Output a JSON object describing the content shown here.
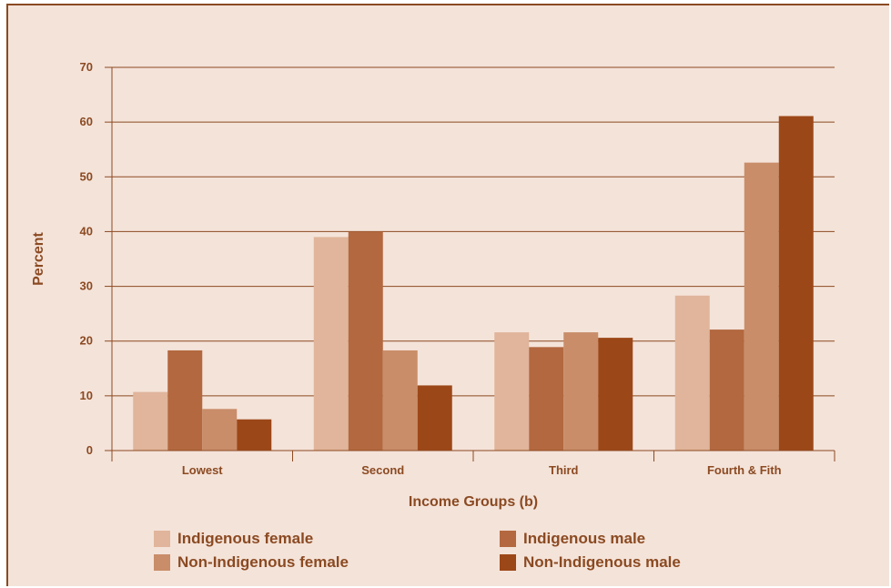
{
  "chart_data": {
    "type": "bar",
    "title": "",
    "xlabel": "Income Groups (b)",
    "ylabel": "Percent",
    "ylim": [
      0,
      70
    ],
    "yticks": [
      "0",
      "10",
      "20",
      "30",
      "40",
      "50",
      "60",
      "70"
    ],
    "grid": true,
    "legend_position": "bottom",
    "categories": [
      "Lowest",
      "Second",
      "Third",
      "Fourth & Fith"
    ],
    "series": [
      {
        "name": "Indigenous female",
        "color": "#e0b59b",
        "values": [
          10.7,
          39.0,
          21.6,
          28.3
        ]
      },
      {
        "name": "Indigenous male",
        "color": "#b3683f",
        "values": [
          18.3,
          40.0,
          18.9,
          22.1
        ]
      },
      {
        "name": "Non-Indigenous female",
        "color": "#c98d69",
        "values": [
          7.6,
          18.3,
          21.6,
          52.6
        ]
      },
      {
        "name": "Non-Indigenous male",
        "color": "#9c4718",
        "values": [
          5.7,
          11.9,
          20.6,
          61.1
        ]
      }
    ]
  },
  "colors": {
    "axis": "#8b4a22",
    "background": "#f4e3d9"
  }
}
